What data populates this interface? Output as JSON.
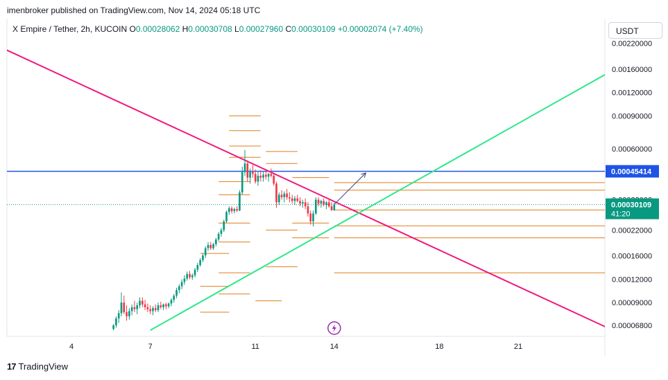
{
  "header": {
    "publisher": "imenbroker published on TradingView.com, Nov 14, 2024 05:18 UTC"
  },
  "legend": {
    "symbol": "X Empire / Tether, 2h, KUCOIN",
    "o_label": "O",
    "o_value": "0.00028062",
    "h_label": "H",
    "h_value": "0.00030708",
    "l_label": "L",
    "l_value": "0.00027960",
    "c_label": "C",
    "c_value": "0.00030109",
    "change": "+0.00002074 (+7.40%)"
  },
  "currency": "USDT",
  "footer": {
    "logo": "17",
    "brand": "TradingView"
  },
  "colors": {
    "up": "#089981",
    "down": "#f23645",
    "resistance": "#1e53e5",
    "pink_line": "#f0197d",
    "green_line": "#2ee88a",
    "fib": "#e07b1a",
    "arrow": "#2f3a7a",
    "lightning": "#9c27b0"
  },
  "chart_data": {
    "type": "candlestick",
    "symbol": "X Empire / Tether",
    "interval": "2h",
    "exchange": "KUCOIN",
    "y_scale": "log",
    "y_ticks": [
      "0.00220000",
      "0.00160000",
      "0.00120000",
      "0.00090000",
      "0.00060000",
      "0.00032000",
      "0.00022000",
      "0.00016000",
      "0.00012000",
      "0.00009000",
      "0.00006800"
    ],
    "x_ticks": [
      "4",
      "7",
      "11",
      "14",
      "18",
      "21"
    ],
    "x_tick_days": [
      4,
      7,
      11,
      14,
      18,
      21
    ],
    "x_range_days": [
      0.4,
      25.9
    ],
    "resistance_label": "0.00045414",
    "resistance_value": 0.00045414,
    "last_price_label": "0.00030109",
    "last_price_value": 0.00030109,
    "countdown": "41:20",
    "ohlc": {
      "open": 0.00028062,
      "high": 0.00030708,
      "low": 0.0002796,
      "close": 0.00030109
    },
    "candles": [
      {
        "d": 5.6,
        "o": 6.5e-05,
        "h": 6.9e-05,
        "l": 6.4e-05,
        "c": 6.8e-05
      },
      {
        "d": 5.7,
        "o": 6.8e-05,
        "h": 7.6e-05,
        "l": 6.6e-05,
        "c": 7.4e-05
      },
      {
        "d": 5.8,
        "o": 7.4e-05,
        "h": 8.2e-05,
        "l": 7e-05,
        "c": 7.9e-05
      },
      {
        "d": 5.9,
        "o": 7.9e-05,
        "h": 0.000102,
        "l": 7.6e-05,
        "c": 9e-05
      },
      {
        "d": 6.0,
        "o": 9e-05,
        "h": 9.8e-05,
        "l": 7.8e-05,
        "c": 8e-05
      },
      {
        "d": 6.1,
        "o": 8e-05,
        "h": 8.7e-05,
        "l": 7.2e-05,
        "c": 7.6e-05
      },
      {
        "d": 6.2,
        "o": 7.6e-05,
        "h": 8.4e-05,
        "l": 7.3e-05,
        "c": 8.1e-05
      },
      {
        "d": 6.3,
        "o": 8.1e-05,
        "h": 8.8e-05,
        "l": 7.7e-05,
        "c": 8.5e-05
      },
      {
        "d": 6.4,
        "o": 8.5e-05,
        "h": 9.2e-05,
        "l": 8e-05,
        "c": 8.3e-05
      },
      {
        "d": 6.5,
        "o": 8.3e-05,
        "h": 9e-05,
        "l": 7.8e-05,
        "c": 8.7e-05
      },
      {
        "d": 6.6,
        "o": 8.7e-05,
        "h": 9.6e-05,
        "l": 8.4e-05,
        "c": 9.2e-05
      },
      {
        "d": 6.7,
        "o": 9.2e-05,
        "h": 9.6e-05,
        "l": 8.5e-05,
        "c": 8.8e-05
      },
      {
        "d": 6.8,
        "o": 8.8e-05,
        "h": 9.3e-05,
        "l": 8.2e-05,
        "c": 8.5e-05
      },
      {
        "d": 6.9,
        "o": 8.5e-05,
        "h": 8.9e-05,
        "l": 8e-05,
        "c": 8.3e-05
      },
      {
        "d": 7.0,
        "o": 8.3e-05,
        "h": 8.7e-05,
        "l": 7.8e-05,
        "c": 8.1e-05
      },
      {
        "d": 7.1,
        "o": 8.1e-05,
        "h": 8.6e-05,
        "l": 7.7e-05,
        "c": 8.4e-05
      },
      {
        "d": 7.2,
        "o": 8.4e-05,
        "h": 8.8e-05,
        "l": 8e-05,
        "c": 8.2e-05
      },
      {
        "d": 7.3,
        "o": 8.2e-05,
        "h": 9e-05,
        "l": 8e-05,
        "c": 8.7e-05
      },
      {
        "d": 7.4,
        "o": 8.7e-05,
        "h": 9.1e-05,
        "l": 8.3e-05,
        "c": 8.5e-05
      },
      {
        "d": 7.5,
        "o": 8.5e-05,
        "h": 8.9e-05,
        "l": 8.2e-05,
        "c": 8.8e-05
      },
      {
        "d": 7.6,
        "o": 8.8e-05,
        "h": 9e-05,
        "l": 8.3e-05,
        "c": 8.6e-05
      },
      {
        "d": 7.7,
        "o": 8.6e-05,
        "h": 9e-05,
        "l": 8.4e-05,
        "c": 8.9e-05
      },
      {
        "d": 7.8,
        "o": 8.9e-05,
        "h": 9.5e-05,
        "l": 8.6e-05,
        "c": 9.3e-05
      },
      {
        "d": 7.9,
        "o": 9.3e-05,
        "h": 0.0001,
        "l": 9e-05,
        "c": 9.8e-05
      },
      {
        "d": 8.0,
        "o": 9.8e-05,
        "h": 0.000108,
        "l": 9.5e-05,
        "c": 0.000105
      },
      {
        "d": 8.1,
        "o": 0.000105,
        "h": 0.000113,
        "l": 0.000101,
        "c": 0.00011
      },
      {
        "d": 8.2,
        "o": 0.00011,
        "h": 0.00012,
        "l": 0.000106,
        "c": 0.000116
      },
      {
        "d": 8.3,
        "o": 0.000116,
        "h": 0.000126,
        "l": 0.000112,
        "c": 0.000121
      },
      {
        "d": 8.4,
        "o": 0.000121,
        "h": 0.000132,
        "l": 0.000118,
        "c": 0.000128
      },
      {
        "d": 8.5,
        "o": 0.000128,
        "h": 0.000133,
        "l": 0.00012,
        "c": 0.000123
      },
      {
        "d": 8.6,
        "o": 0.000123,
        "h": 0.000129,
        "l": 0.000119,
        "c": 0.000126
      },
      {
        "d": 8.7,
        "o": 0.000126,
        "h": 0.000138,
        "l": 0.000123,
        "c": 0.000135
      },
      {
        "d": 8.8,
        "o": 0.000135,
        "h": 0.000147,
        "l": 0.000131,
        "c": 0.000143
      },
      {
        "d": 8.9,
        "o": 0.000143,
        "h": 0.000156,
        "l": 0.00014,
        "c": 0.000152
      },
      {
        "d": 9.0,
        "o": 0.000152,
        "h": 0.000165,
        "l": 0.000148,
        "c": 0.000161
      },
      {
        "d": 9.1,
        "o": 0.000161,
        "h": 0.00018,
        "l": 0.000156,
        "c": 0.000176
      },
      {
        "d": 9.2,
        "o": 0.000176,
        "h": 0.00019,
        "l": 0.00017,
        "c": 0.000183
      },
      {
        "d": 9.3,
        "o": 0.000183,
        "h": 0.00019,
        "l": 0.000172,
        "c": 0.000176
      },
      {
        "d": 9.4,
        "o": 0.000176,
        "h": 0.000188,
        "l": 0.000172,
        "c": 0.000185
      },
      {
        "d": 9.5,
        "o": 0.000185,
        "h": 0.0002,
        "l": 0.00018,
        "c": 0.000196
      },
      {
        "d": 9.6,
        "o": 0.000196,
        "h": 0.000215,
        "l": 0.000192,
        "c": 0.00021
      },
      {
        "d": 9.7,
        "o": 0.00021,
        "h": 0.000226,
        "l": 0.000203,
        "c": 0.00022
      },
      {
        "d": 9.8,
        "o": 0.00022,
        "h": 0.00025,
        "l": 0.000215,
        "c": 0.000245
      },
      {
        "d": 9.9,
        "o": 0.000245,
        "h": 0.00028,
        "l": 0.00024,
        "c": 0.000275
      },
      {
        "d": 10.0,
        "o": 0.000275,
        "h": 0.000295,
        "l": 0.000265,
        "c": 0.000288
      },
      {
        "d": 10.1,
        "o": 0.000288,
        "h": 0.000295,
        "l": 0.00027,
        "c": 0.000278
      },
      {
        "d": 10.2,
        "o": 0.000278,
        "h": 0.00029,
        "l": 0.00027,
        "c": 0.000285
      },
      {
        "d": 10.3,
        "o": 0.000285,
        "h": 0.000295,
        "l": 0.000275,
        "c": 0.00028
      },
      {
        "d": 10.4,
        "o": 0.00028,
        "h": 0.00036,
        "l": 0.000278,
        "c": 0.00035
      },
      {
        "d": 10.5,
        "o": 0.00035,
        "h": 0.00048,
        "l": 0.00034,
        "c": 0.00045
      },
      {
        "d": 10.6,
        "o": 0.00045,
        "h": 0.00059,
        "l": 0.00043,
        "c": 0.0005
      },
      {
        "d": 10.7,
        "o": 0.0005,
        "h": 0.00052,
        "l": 0.0004,
        "c": 0.00042
      },
      {
        "d": 10.8,
        "o": 0.00042,
        "h": 0.00047,
        "l": 0.00039,
        "c": 0.00045
      },
      {
        "d": 10.9,
        "o": 0.00045,
        "h": 0.00049,
        "l": 0.00042,
        "c": 0.00044
      },
      {
        "d": 11.0,
        "o": 0.00044,
        "h": 0.000465,
        "l": 0.00039,
        "c": 0.0004
      },
      {
        "d": 11.1,
        "o": 0.0004,
        "h": 0.00045,
        "l": 0.00038,
        "c": 0.00043
      },
      {
        "d": 11.2,
        "o": 0.00043,
        "h": 0.00046,
        "l": 0.0004,
        "c": 0.00042
      },
      {
        "d": 11.3,
        "o": 0.00042,
        "h": 0.00045,
        "l": 0.0004,
        "c": 0.000435
      },
      {
        "d": 11.4,
        "o": 0.000435,
        "h": 0.000455,
        "l": 0.00041,
        "c": 0.000425
      },
      {
        "d": 11.5,
        "o": 0.000425,
        "h": 0.000445,
        "l": 0.0004,
        "c": 0.00044
      },
      {
        "d": 11.6,
        "o": 0.00044,
        "h": 0.00047,
        "l": 0.00042,
        "c": 0.00043
      },
      {
        "d": 11.7,
        "o": 0.00043,
        "h": 0.00044,
        "l": 0.00038,
        "c": 0.00039
      },
      {
        "d": 11.8,
        "o": 0.00039,
        "h": 0.0004,
        "l": 0.00029,
        "c": 0.00031
      },
      {
        "d": 11.9,
        "o": 0.00031,
        "h": 0.00035,
        "l": 0.0003,
        "c": 0.00034
      },
      {
        "d": 12.0,
        "o": 0.00034,
        "h": 0.00036,
        "l": 0.00032,
        "c": 0.00033
      },
      {
        "d": 12.1,
        "o": 0.00033,
        "h": 0.000355,
        "l": 0.00031,
        "c": 0.000345
      },
      {
        "d": 12.2,
        "o": 0.000345,
        "h": 0.000365,
        "l": 0.00032,
        "c": 0.00033
      },
      {
        "d": 12.3,
        "o": 0.00033,
        "h": 0.00035,
        "l": 0.00031,
        "c": 0.000325
      },
      {
        "d": 12.4,
        "o": 0.000325,
        "h": 0.00034,
        "l": 0.000305,
        "c": 0.000315
      },
      {
        "d": 12.5,
        "o": 0.000315,
        "h": 0.000335,
        "l": 0.0003,
        "c": 0.000325
      },
      {
        "d": 12.6,
        "o": 0.000325,
        "h": 0.00034,
        "l": 0.00031,
        "c": 0.000315
      },
      {
        "d": 12.7,
        "o": 0.000315,
        "h": 0.00033,
        "l": 0.000295,
        "c": 0.000305
      },
      {
        "d": 12.8,
        "o": 0.000305,
        "h": 0.00032,
        "l": 0.00029,
        "c": 0.00031
      },
      {
        "d": 12.9,
        "o": 0.00031,
        "h": 0.000325,
        "l": 0.000285,
        "c": 0.000295
      },
      {
        "d": 13.0,
        "o": 0.000295,
        "h": 0.00031,
        "l": 0.00026,
        "c": 0.00027
      },
      {
        "d": 13.1,
        "o": 0.00027,
        "h": 0.00028,
        "l": 0.000235,
        "c": 0.000245
      },
      {
        "d": 13.2,
        "o": 0.000245,
        "h": 0.00028,
        "l": 0.00023,
        "c": 0.00027
      },
      {
        "d": 13.3,
        "o": 0.00027,
        "h": 0.00033,
        "l": 0.000265,
        "c": 0.00032
      },
      {
        "d": 13.4,
        "o": 0.00032,
        "h": 0.00033,
        "l": 0.000295,
        "c": 0.000305
      },
      {
        "d": 13.5,
        "o": 0.000305,
        "h": 0.00032,
        "l": 0.00029,
        "c": 0.000315
      },
      {
        "d": 13.6,
        "o": 0.000315,
        "h": 0.000325,
        "l": 0.000295,
        "c": 0.0003
      },
      {
        "d": 13.7,
        "o": 0.0003,
        "h": 0.000315,
        "l": 0.000285,
        "c": 0.00031
      },
      {
        "d": 13.8,
        "o": 0.00031,
        "h": 0.00032,
        "l": 0.00029,
        "c": 0.000295
      },
      {
        "d": 13.9,
        "o": 0.000295,
        "h": 0.00031,
        "l": 0.00028,
        "c": 0.0002806
      },
      {
        "d": 14.0,
        "o": 0.0002806,
        "h": 0.0003071,
        "l": 0.0002796,
        "c": 0.0003011
      }
    ],
    "pink_trendline": [
      {
        "d": 0.4,
        "p": 0.0024
      },
      {
        "d": 24.6,
        "p": 6.4e-05
      }
    ],
    "green_trendline": [
      {
        "d": 7.0,
        "p": 6.4e-05
      },
      {
        "d": 25.9,
        "p": 0.002
      }
    ],
    "resistance_line_start_day": 0.4,
    "projection_arrow": [
      {
        "d": 14.0,
        "p": 0.000302
      },
      {
        "d": 15.2,
        "p": 0.000445
      }
    ],
    "fib_levels": [
      {
        "d1": 10.0,
        "d2": 11.2,
        "p": 0.0009
      },
      {
        "d1": 10.0,
        "d2": 11.2,
        "p": 0.00075
      },
      {
        "d1": 10.0,
        "d2": 11.2,
        "p": 0.00062
      },
      {
        "d1": 11.4,
        "d2": 12.6,
        "p": 0.00058
      },
      {
        "d1": 11.4,
        "d2": 12.6,
        "p": 0.0005
      },
      {
        "d1": 10.0,
        "d2": 11.2,
        "p": 0.00054
      },
      {
        "d1": 9.6,
        "d2": 10.8,
        "p": 0.0004
      },
      {
        "d1": 9.6,
        "d2": 10.8,
        "p": 0.00034
      },
      {
        "d1": 9.6,
        "d2": 10.8,
        "p": 0.00024
      },
      {
        "d1": 9.6,
        "d2": 10.8,
        "p": 0.00019
      },
      {
        "d1": 9.6,
        "d2": 10.8,
        "p": 0.00013
      },
      {
        "d1": 9.6,
        "d2": 10.8,
        "p": 0.0001
      },
      {
        "d1": 8.9,
        "d2": 10.0,
        "p": 0.000165
      },
      {
        "d1": 8.9,
        "d2": 10.0,
        "p": 0.00011
      },
      {
        "d1": 8.9,
        "d2": 10.0,
        "p": 8e-05
      },
      {
        "d1": 11.0,
        "d2": 12.0,
        "p": 9.2e-05
      },
      {
        "d1": 11.4,
        "d2": 12.6,
        "p": 0.00022
      },
      {
        "d1": 11.4,
        "d2": 12.6,
        "p": 0.00014
      },
      {
        "d1": 12.4,
        "d2": 13.8,
        "p": 0.00042
      },
      {
        "d1": 12.4,
        "d2": 13.8,
        "p": 0.00024
      },
      {
        "d1": 12.4,
        "d2": 13.8,
        "p": 0.0002
      },
      {
        "d1": 14.0,
        "d2": 25.9,
        "p": 0.000395
      },
      {
        "d1": 14.0,
        "d2": 25.9,
        "p": 0.00036
      },
      {
        "d1": 14.0,
        "d2": 25.9,
        "p": 0.000282
      },
      {
        "d1": 14.0,
        "d2": 25.9,
        "p": 0.000232
      },
      {
        "d1": 14.0,
        "d2": 25.9,
        "p": 0.0002
      },
      {
        "d1": 14.0,
        "d2": 25.9,
        "p": 0.00013
      }
    ],
    "event_marker_day": 14.0,
    "grid": false
  }
}
